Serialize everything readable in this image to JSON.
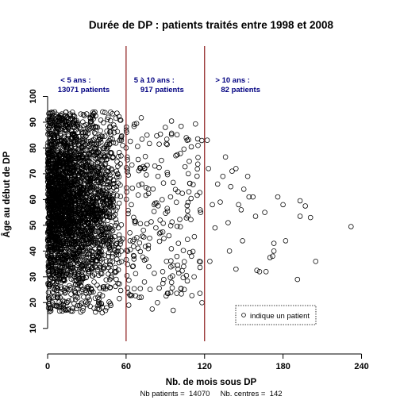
{
  "chart_data": {
    "type": "scatter",
    "title": "Durée de DP : patients traités entre 1998 et 2008",
    "xlabel": "Nb. de mois sous DP",
    "ylabel": "Âge au début de DP",
    "xlim": [
      0,
      250
    ],
    "ylim": [
      5,
      102
    ],
    "x_ticks": [
      0,
      60,
      120,
      180,
      240
    ],
    "y_ticks": [
      10,
      20,
      30,
      40,
      50,
      60,
      70,
      80,
      90,
      100
    ],
    "grid": false,
    "vertical_lines": [
      {
        "x": 60,
        "color": "#8b1a1a"
      },
      {
        "x": 120,
        "color": "#8b1a1a"
      }
    ],
    "group_annotations": [
      {
        "label": "< 5 ans :",
        "count": "13071 patients",
        "x_center": 30
      },
      {
        "label": "5 à 10 ans :",
        "count": "917 patients",
        "x_center": 90
      },
      {
        "label": "> 10 ans :",
        "count": "82 patients",
        "x_center": 150
      }
    ],
    "annotation_color": "#000080",
    "legend": {
      "position": "bottom-right",
      "label": "indique un patient",
      "marker": "open-circle"
    },
    "footer": "Nb patients =  14070     Nb. centres =  142",
    "outlier_points": [
      [
        232,
        49.5
      ],
      [
        205,
        36
      ],
      [
        201,
        53
      ],
      [
        197,
        57.5
      ],
      [
        193,
        53.5
      ],
      [
        193,
        59.5
      ],
      [
        191,
        29
      ],
      [
        182,
        44
      ],
      [
        180,
        58
      ],
      [
        176,
        61
      ],
      [
        173,
        40
      ],
      [
        173,
        43
      ],
      [
        172,
        38
      ],
      [
        170,
        37.5
      ],
      [
        167,
        32
      ],
      [
        166,
        55
      ],
      [
        162,
        32
      ],
      [
        160,
        32.5
      ],
      [
        159,
        53.5
      ],
      [
        157,
        61
      ],
      [
        154,
        61
      ],
      [
        153,
        69
      ],
      [
        150,
        64
      ],
      [
        149,
        44
      ],
      [
        148,
        56
      ],
      [
        146,
        58
      ],
      [
        144,
        33
      ],
      [
        144,
        72
      ],
      [
        141,
        71
      ],
      [
        140,
        65
      ],
      [
        139,
        40
      ],
      [
        138,
        51
      ],
      [
        136,
        76.5
      ],
      [
        134,
        69
      ],
      [
        132,
        59
      ],
      [
        130,
        66
      ],
      [
        128,
        49
      ],
      [
        126,
        58
      ],
      [
        124,
        36
      ],
      [
        123,
        72
      ],
      [
        122,
        83
      ],
      [
        118,
        20
      ],
      [
        117,
        55
      ],
      [
        116,
        36
      ],
      [
        115,
        81
      ],
      [
        112,
        30
      ],
      [
        110,
        38
      ],
      [
        108,
        63
      ],
      [
        106,
        84
      ],
      [
        104,
        34
      ],
      [
        102,
        25.5
      ],
      [
        100,
        43
      ],
      [
        98,
        77
      ],
      [
        96,
        17
      ],
      [
        94,
        61
      ],
      [
        92,
        23.5
      ],
      [
        90,
        88
      ],
      [
        88,
        32
      ],
      [
        86,
        52
      ],
      [
        84,
        20
      ],
      [
        82,
        73
      ],
      [
        80,
        17.5
      ],
      [
        78,
        45
      ],
      [
        76,
        85
      ],
      [
        74,
        28
      ],
      [
        72,
        66
      ],
      [
        70,
        22
      ],
      [
        68,
        89.5
      ],
      [
        66,
        38
      ],
      [
        64,
        58
      ],
      [
        62,
        19
      ],
      [
        60,
        80
      ]
    ]
  }
}
